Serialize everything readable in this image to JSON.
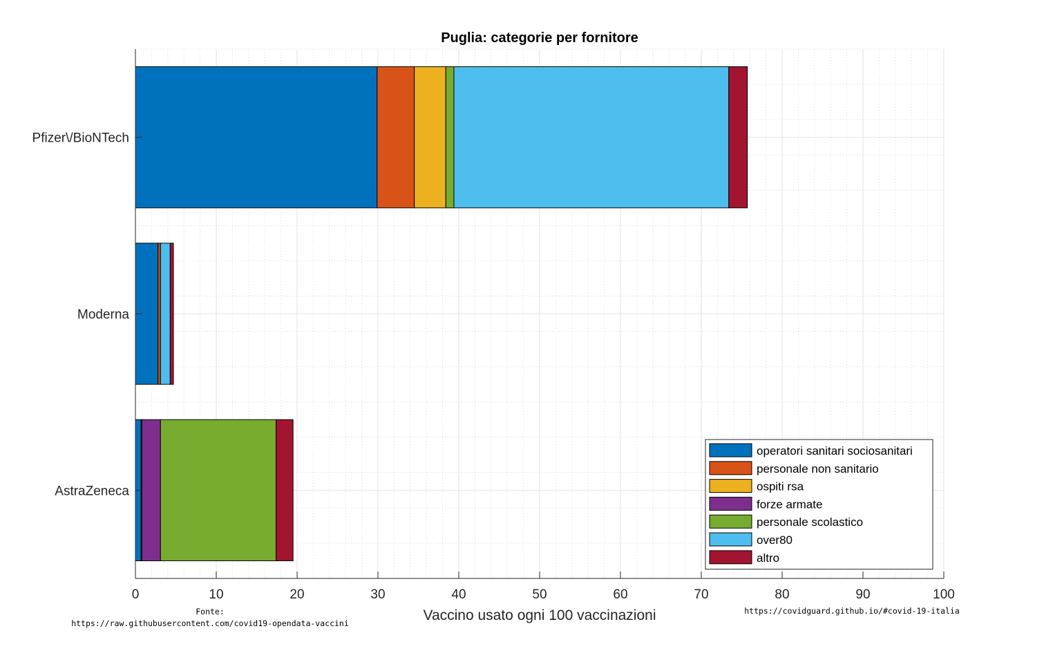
{
  "chart_data": {
    "type": "bar",
    "orientation": "horizontal",
    "stacked": true,
    "title": "Puglia: categorie per fornitore",
    "xlabel": "Vaccino usato ogni 100 vaccinazioni",
    "ylabel": "",
    "xlim": [
      0,
      100
    ],
    "xticks": [
      0,
      10,
      20,
      30,
      40,
      50,
      60,
      70,
      80,
      90,
      100
    ],
    "grid": true,
    "legend_position": "bottom-right",
    "categories": [
      "Pfizer\\/BioNTech",
      "Moderna",
      "AstraZeneca"
    ],
    "series": [
      {
        "name": "operatori sanitari sociosanitari",
        "color": "#0072BD",
        "values": [
          29.9,
          2.8,
          0.7
        ]
      },
      {
        "name": "personale non sanitario",
        "color": "#D95319",
        "values": [
          4.6,
          0.3,
          0.1
        ]
      },
      {
        "name": "ospiti rsa",
        "color": "#EDB120",
        "values": [
          3.9,
          0.0,
          0.0
        ]
      },
      {
        "name": "forze armate",
        "color": "#7E2F8E",
        "values": [
          0.0,
          0.0,
          2.3
        ]
      },
      {
        "name": "personale scolastico",
        "color": "#77AC30",
        "values": [
          1.0,
          0.0,
          14.3
        ]
      },
      {
        "name": "over80",
        "color": "#4DBEEE",
        "values": [
          34.0,
          1.2,
          0.0
        ]
      },
      {
        "name": "altro",
        "color": "#A2142F",
        "values": [
          2.3,
          0.4,
          2.1
        ]
      }
    ]
  },
  "footer": {
    "source_label": "Fonte:",
    "source_url": "https://raw.githubusercontent.com/covid19-opendata-vaccini",
    "site": "https://covidguard.github.io/#covid-19-italia"
  }
}
